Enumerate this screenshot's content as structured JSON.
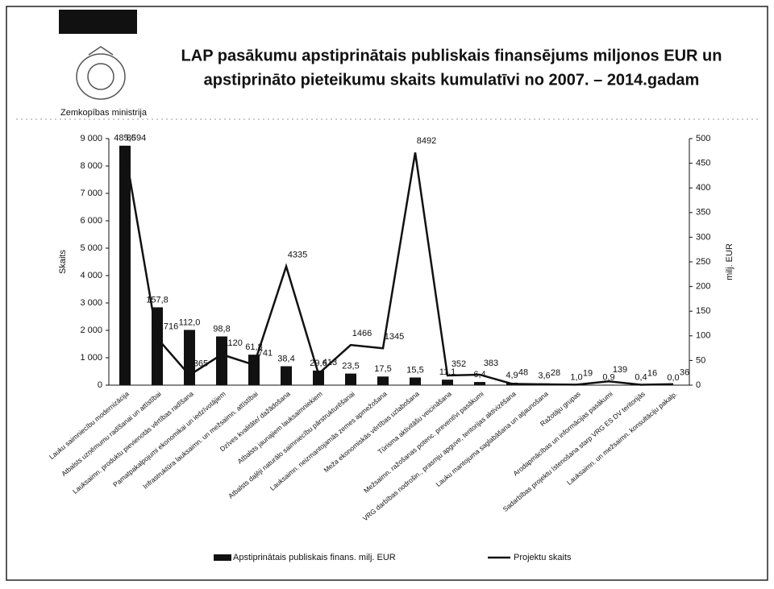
{
  "chart_data": {
    "type": "combo",
    "title": [
      "LAP pasākumu apstiprinātais publiskais finansējums miljonos EUR un",
      "apstiprināto pieteikumu skaits kumulatīvi no 2007. – 2014.gadam"
    ],
    "organization": "Zemkopības ministrija",
    "ylabel": "Skaits",
    "y2label": "milj. EUR",
    "categories": [
      "Lauku saimniecību modernizācija",
      "Atbalsts uzņēmumu radīšanai un attīstībai",
      "Lauksaimn. produktu pievienotās vērtības radīšana",
      "Pamatpakalpojumi ekonomikai un iedzīvotājiem",
      "Infrastruktūra lauksaimn. un mežsaimn. attīstībai",
      "Dzīves kvalitāte/ dažādošana",
      "Atbalsts jaunajiem lauksaimniekiem",
      "Atbalsts daļēji naturālo saimniecību pārstrukturēšanai",
      "Lauksaimn. neizmantojamās zemes apmežošana",
      "Meža ekonomiskās vērtības uzlabošana",
      "Tūrisma aktivitāšu veicināšana",
      "Mežsaimn. ražošanas potenc. preventīvi pasākumi",
      "VRG darbības nodrošin., prasmju apguve, teritorijas aktivizēšana",
      "Lauku mantojuma saglabāšana un atjaunošana",
      "Ražotāju grupas",
      "Arodapmācības un informācijas pasākumi",
      "Sadarbības projektu īstenošana starp VRG ES DV teritorijās",
      "Lauksaimn. un mežsaimn. konsultāciju pakalp."
    ],
    "series": [
      {
        "name": "Apstiprinātais publiskais finans. milj. EUR",
        "type": "bar",
        "axis": "y2",
        "color": "#111111",
        "values": [
          485.6,
          157.8,
          112.0,
          98.8,
          61.8,
          38.4,
          29.6,
          23.5,
          17.5,
          15.5,
          11.1,
          6.4,
          4.9,
          3.6,
          1.0,
          0.9,
          0.4,
          0.0
        ],
        "value_labels": [
          "485,6",
          "157,8",
          "112,0",
          "98,8",
          "61,8",
          "38,4",
          "29,6",
          "23,5",
          "17,5",
          "15,5",
          "11,1",
          "6,4",
          "4,9",
          "3,6",
          "1,0",
          "0,9",
          "0,4",
          "0,0"
        ]
      },
      {
        "name": "Projektu skaits",
        "type": "line",
        "axis": "y",
        "color": "#111111",
        "values": [
          8594,
          1716,
          365,
          1120,
          741,
          4335,
          413,
          1466,
          1345,
          8492,
          352,
          383,
          48,
          28,
          19,
          139,
          16,
          36
        ]
      }
    ],
    "ylim": [
      0,
      9000
    ],
    "yticks": [
      0,
      {
        "value": 1000,
        "label": "1 000"
      },
      {
        "value": 2000,
        "label": "2 000"
      },
      {
        "value": 3000,
        "label": "3 000"
      },
      {
        "value": 4000,
        "label": "4 000"
      },
      {
        "value": 5000,
        "label": "5 000"
      },
      {
        "value": 6000,
        "label": "6 000"
      },
      {
        "value": 7000,
        "label": "7 000"
      },
      {
        "value": 8000,
        "label": "8 000"
      },
      {
        "value": 9000,
        "label": "9 000"
      }
    ],
    "y2lim": [
      0,
      500
    ],
    "y2ticks": [
      0,
      50,
      100,
      150,
      200,
      250,
      300,
      350,
      400,
      450,
      500
    ],
    "legend": "bottom"
  }
}
